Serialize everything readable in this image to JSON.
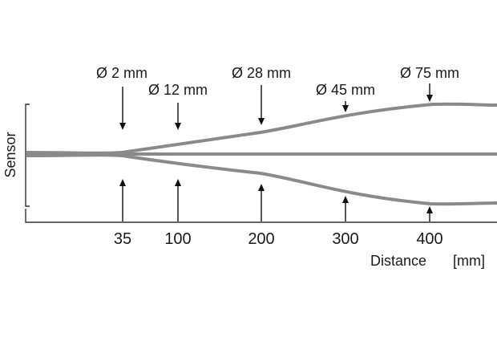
{
  "diagram": {
    "y_axis_label": "Sensor",
    "x_axis_label": "Distance",
    "x_axis_unit": "[mm]",
    "ticks": [
      {
        "distance": 35,
        "label": "35"
      },
      {
        "distance": 100,
        "label": "100"
      },
      {
        "distance": 200,
        "label": "200"
      },
      {
        "distance": 300,
        "label": "300"
      },
      {
        "distance": 400,
        "label": "400"
      }
    ],
    "spot_diameters": [
      {
        "distance": 35,
        "label": "Ø 2 mm"
      },
      {
        "distance": 100,
        "label": "Ø 12 mm"
      },
      {
        "distance": 200,
        "label": "Ø 28 mm"
      },
      {
        "distance": 300,
        "label": "Ø 45 mm"
      },
      {
        "distance": 400,
        "label": "Ø 75 mm"
      }
    ],
    "colors": {
      "beam": "#8a8a8a",
      "axis": "#333333",
      "arrow": "#111111",
      "text": "#1a1a1a"
    }
  }
}
